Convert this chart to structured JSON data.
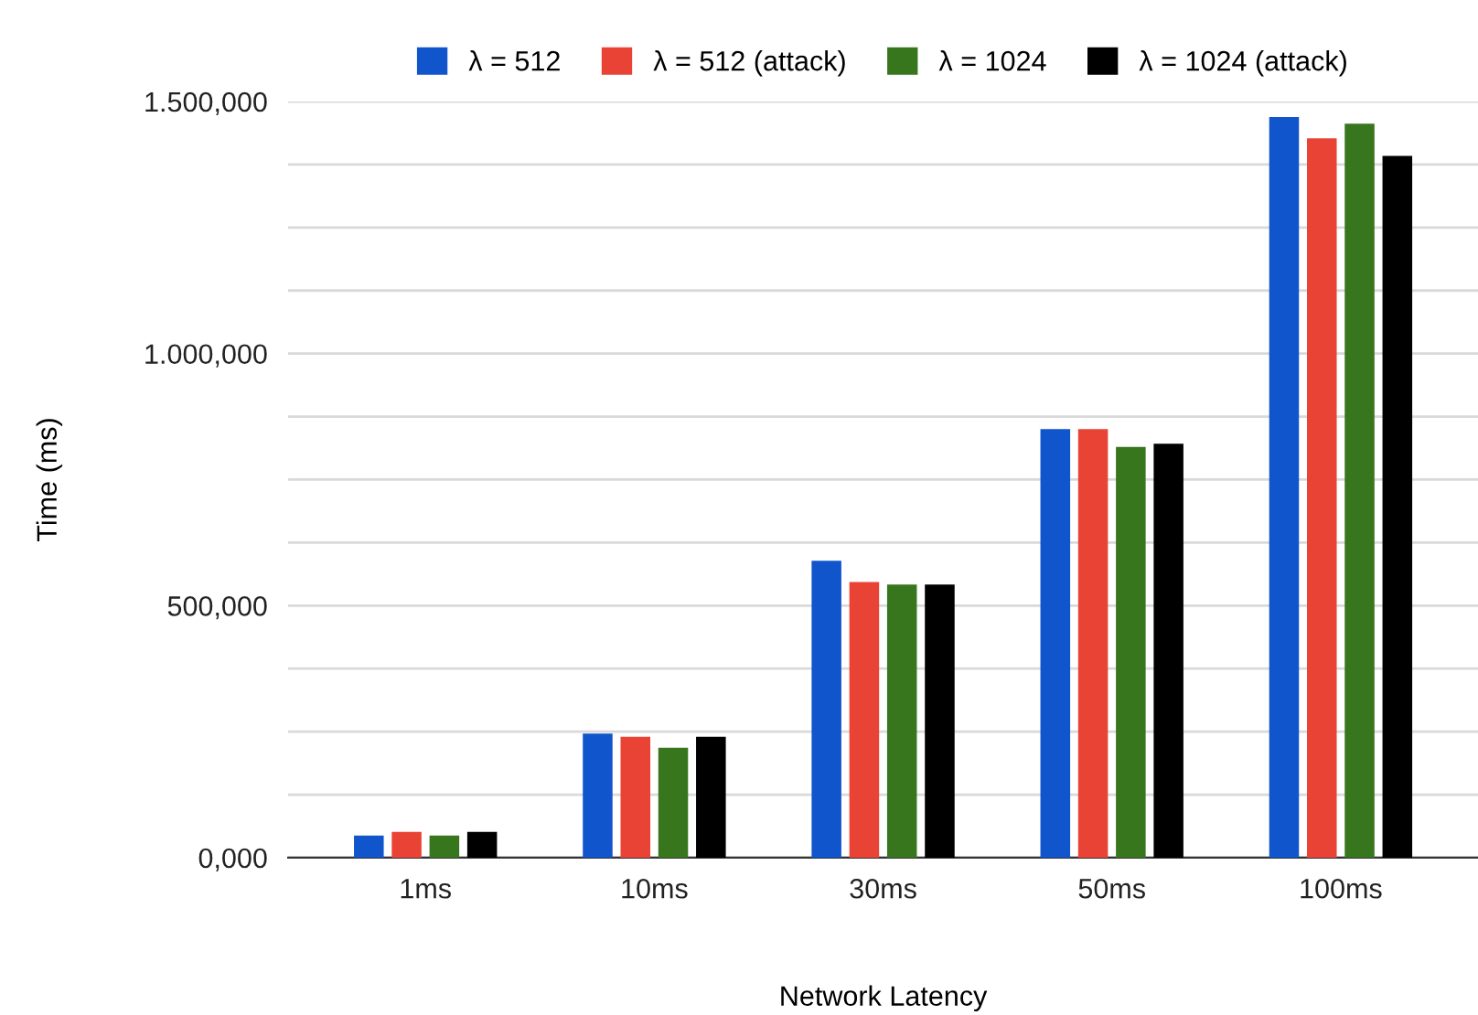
{
  "chart_data": {
    "type": "bar",
    "xlabel": "Network Latency",
    "ylabel": "Time (ms)",
    "categories": [
      "1ms",
      "10ms",
      "30ms",
      "50ms",
      "100ms"
    ],
    "series": [
      {
        "name": "λ = 512",
        "color": "#1155cc",
        "values": [
          44,
          246,
          589,
          850,
          1469
        ]
      },
      {
        "name": "λ = 512 (attack)",
        "color": "#e94335",
        "values": [
          51,
          240,
          547,
          850,
          1427
        ]
      },
      {
        "name": "λ = 1024",
        "color": "#38761d",
        "values": [
          44,
          218,
          542,
          815,
          1456
        ]
      },
      {
        "name": "λ = 1024 (attack)",
        "color": "#000000",
        "values": [
          51,
          240,
          542,
          821,
          1392
        ]
      }
    ],
    "ylim": [
      0,
      1500
    ],
    "yticks": [
      {
        "value": 0,
        "label": "0,000"
      },
      {
        "value": 125,
        "label": null
      },
      {
        "value": 250,
        "label": null
      },
      {
        "value": 375,
        "label": null
      },
      {
        "value": 500,
        "label": "500,000"
      },
      {
        "value": 625,
        "label": null
      },
      {
        "value": 750,
        "label": null
      },
      {
        "value": 875,
        "label": null
      },
      {
        "value": 1000,
        "label": "1.000,000"
      },
      {
        "value": 1125,
        "label": null
      },
      {
        "value": 1250,
        "label": null
      },
      {
        "value": 1375,
        "label": null
      },
      {
        "value": 1500,
        "label": "1.500,000"
      }
    ],
    "grid": "y",
    "legend": "top"
  }
}
